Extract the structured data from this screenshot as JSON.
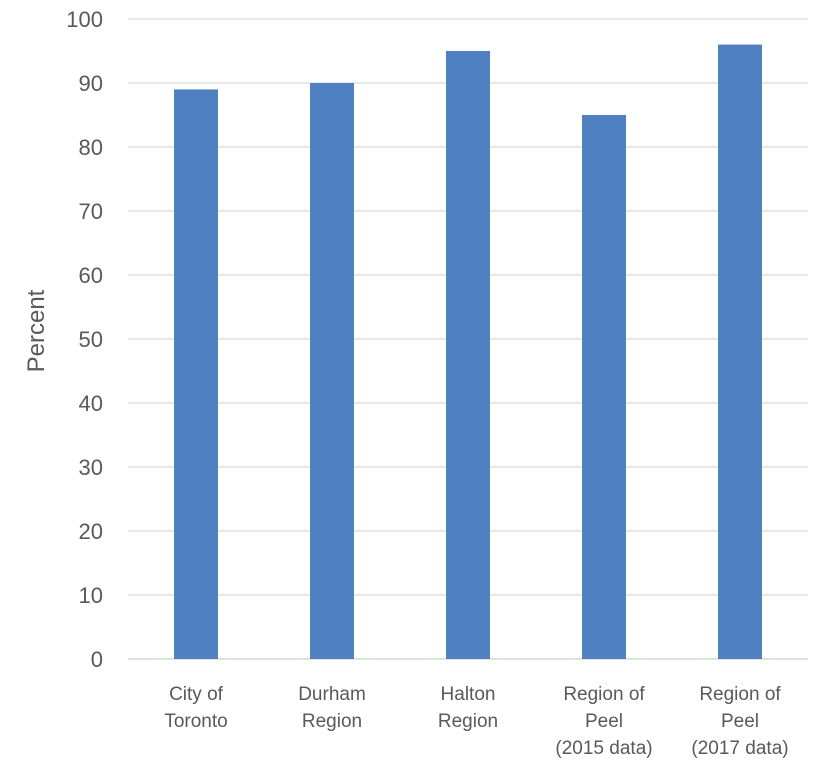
{
  "chart_data": {
    "type": "bar",
    "categories": [
      [
        "City of",
        "Toronto"
      ],
      [
        "Durham",
        "Region"
      ],
      [
        "Halton",
        "Region"
      ],
      [
        "Region of",
        "Peel",
        "(2015 data)"
      ],
      [
        "Region of",
        "Peel",
        "(2017 data)"
      ]
    ],
    "values": [
      89,
      90,
      95,
      85,
      96
    ],
    "ylabel": "Percent",
    "xlabel": "",
    "ylim": [
      0,
      100
    ],
    "yticks": [
      0,
      10,
      20,
      30,
      40,
      50,
      60,
      70,
      80,
      90,
      100
    ],
    "grid": true,
    "legend": "none",
    "colors": {
      "bar": "#4f81c2",
      "grid": "#d9d9d9",
      "text": "#595959"
    }
  }
}
